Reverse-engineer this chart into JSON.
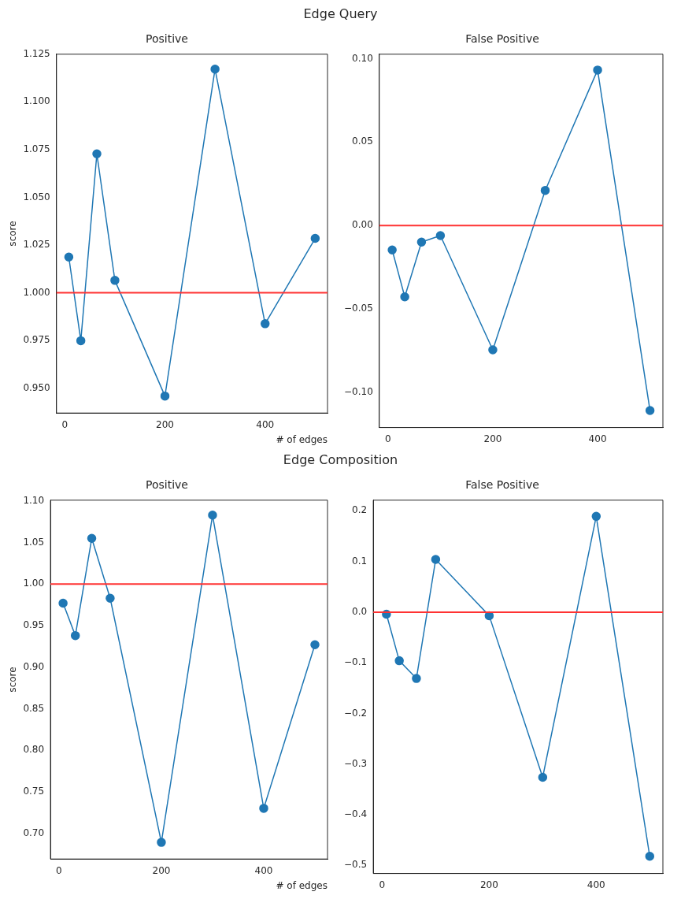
{
  "chart_data": [
    {
      "type": "line",
      "subtitle": "Edge Query",
      "title": "Positive",
      "xlabel": "# of edges",
      "ylabel": "score",
      "x": [
        8,
        32,
        64,
        100,
        200,
        300,
        400,
        500
      ],
      "series": [
        {
          "color": "#1f77b4",
          "values": [
            1.0187,
            0.9749,
            1.0728,
            1.0065,
            0.9459,
            1.1172,
            0.9838,
            1.0285
          ]
        }
      ],
      "marker": "circle",
      "xlim": [
        -16.6,
        524.6
      ],
      "xticks": [
        0,
        200,
        400
      ],
      "ylim": [
        0.937,
        1.125
      ],
      "yticks": [
        {
          "value": 0.95,
          "label": "0.950"
        },
        0.975,
        {
          "value": 1,
          "label": "1.000"
        },
        1.025,
        {
          "value": 1.05,
          "label": "1.050"
        },
        1.075,
        {
          "value": 1.1,
          "label": "1.100"
        },
        1.125
      ],
      "ref_lines": [
        {
          "axis": "y",
          "value": 1,
          "color": "#ff3333"
        }
      ]
    },
    {
      "type": "line",
      "title": "False Positive",
      "x": [
        8,
        32,
        64,
        100,
        200,
        300,
        400,
        500
      ],
      "series": [
        {
          "color": "#1f77b4",
          "values": [
            -0.0147,
            -0.0428,
            -0.01,
            -0.0061,
            -0.0746,
            0.021,
            0.0932,
            -0.111
          ]
        }
      ],
      "marker": "circle",
      "xlim": [
        -16.6,
        524.6
      ],
      "xticks": [
        0,
        200,
        400
      ],
      "ylim": [
        -0.1212,
        0.1027
      ],
      "yticks": [
        {
          "value": -0.1,
          "label": "−0.10"
        },
        {
          "value": -0.05,
          "label": "−0.05"
        },
        {
          "value": 0,
          "label": "0.00"
        },
        0.05,
        {
          "value": 0.1,
          "label": "0.10"
        }
      ],
      "ref_lines": [
        {
          "axis": "y",
          "value": 0,
          "color": "#ff3333"
        }
      ]
    },
    {
      "type": "line",
      "subtitle": "Edge Composition",
      "title": "Positive",
      "xlabel": "# of edges",
      "ylabel": "score",
      "x": [
        8,
        32,
        64,
        100,
        200,
        300,
        400,
        500
      ],
      "series": [
        {
          "color": "#1f77b4",
          "values": [
            0.977,
            0.938,
            1.055,
            0.983,
            0.689,
            1.083,
            0.73,
            0.927
          ]
        }
      ],
      "marker": "circle",
      "xlim": [
        -16.6,
        524.6
      ],
      "xticks": [
        0,
        200,
        400
      ],
      "ylim": [
        0.669,
        1.101
      ],
      "yticks": [
        {
          "value": 0.7,
          "label": "0.70"
        },
        0.75,
        {
          "value": 0.8,
          "label": "0.80"
        },
        0.85,
        {
          "value": 0.9,
          "label": "0.90"
        },
        0.95,
        {
          "value": 1,
          "label": "1.00"
        },
        1.05,
        {
          "value": 1.1,
          "label": "1.10"
        }
      ],
      "ref_lines": [
        {
          "axis": "y",
          "value": 1,
          "color": "#ff3333"
        }
      ]
    },
    {
      "type": "line",
      "title": "False Positive",
      "x": [
        8,
        32,
        64,
        100,
        200,
        300,
        400,
        500
      ],
      "series": [
        {
          "color": "#1f77b4",
          "values": [
            -0.004,
            -0.096,
            -0.131,
            0.104,
            -0.007,
            -0.326,
            0.189,
            -0.482
          ]
        }
      ],
      "marker": "circle",
      "xlim": [
        -16.6,
        524.6
      ],
      "xticks": [
        0,
        200,
        400
      ],
      "ylim": [
        -0.516,
        0.221
      ],
      "yticks": [
        {
          "value": -0.5,
          "label": "−0.5"
        },
        {
          "value": -0.4,
          "label": "−0.4"
        },
        {
          "value": -0.3,
          "label": "−0.3"
        },
        {
          "value": -0.2,
          "label": "−0.2"
        },
        {
          "value": -0.1,
          "label": "−0.1"
        },
        {
          "value": 0,
          "label": "0.0"
        },
        0.1,
        0.2
      ],
      "ref_lines": [
        {
          "axis": "y",
          "value": 0,
          "color": "#ff3333"
        }
      ]
    }
  ]
}
